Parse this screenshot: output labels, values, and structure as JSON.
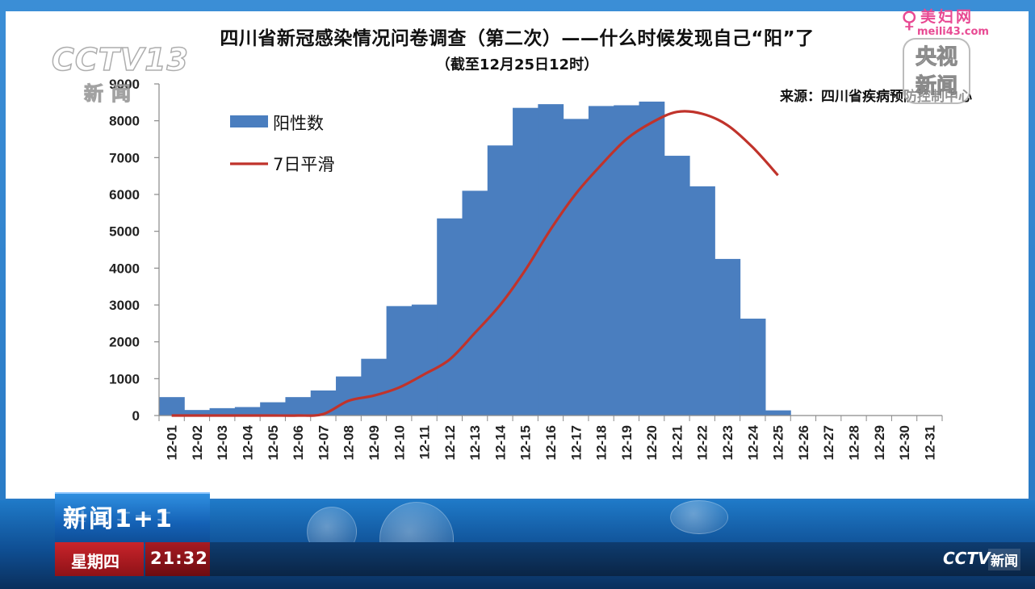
{
  "title": "四川省新冠感染情况问卷调查（第二次）——什么时候发现自己“阳”了",
  "subtitle": "（截至12月25日12时）",
  "source": "来源：四川省疾病预防控制中心",
  "broadcast": {
    "channel_logo_text": "CCTV13",
    "channel_sub_text": "新闻",
    "yangshi_text": "央视新闻",
    "program_name": "新闻1+1",
    "weekday": "星期四",
    "time": "21:32",
    "corner_logo": "CCTV",
    "corner_logo_sub": "新闻"
  },
  "watermark": {
    "name": "美妇网",
    "url": "meili43.com"
  },
  "colors": {
    "bar": "#4a7ebf",
    "line": "#c0332b",
    "axis": "#8a8a8a"
  },
  "chart_data": {
    "type": "bar",
    "categories": [
      "12-01",
      "12-02",
      "12-03",
      "12-04",
      "12-05",
      "12-06",
      "12-07",
      "12-08",
      "12-09",
      "12-10",
      "12-11",
      "12-12",
      "12-13",
      "12-14",
      "12-15",
      "12-16",
      "12-17",
      "12-18",
      "12-19",
      "12-20",
      "12-21",
      "12-22",
      "12-23",
      "12-24",
      "12-25",
      "12-26",
      "12-27",
      "12-28",
      "12-29",
      "12-30",
      "12-31"
    ],
    "series": [
      {
        "name": "阳性数",
        "type": "bar",
        "values": [
          500,
          150,
          200,
          230,
          360,
          500,
          680,
          1060,
          1540,
          2970,
          3010,
          5350,
          6100,
          7330,
          8350,
          8450,
          8050,
          8400,
          8420,
          8520,
          7050,
          6220,
          4250,
          2630,
          140,
          0,
          0,
          0,
          0,
          0,
          0
        ]
      },
      {
        "name": "7日平滑",
        "type": "line",
        "values": [
          0,
          0,
          0,
          0,
          0,
          0,
          40,
          400,
          540,
          760,
          1120,
          1520,
          2240,
          3000,
          3950,
          5050,
          6020,
          6800,
          7500,
          7950,
          8240,
          8190,
          7880,
          7280,
          6520,
          null,
          null,
          null,
          null,
          null,
          null
        ]
      }
    ],
    "ylim": [
      0,
      9000
    ],
    "yticks": [
      0,
      1000,
      2000,
      3000,
      4000,
      5000,
      6000,
      7000,
      8000,
      9000
    ],
    "legend_position": "top-left",
    "grid": false
  }
}
